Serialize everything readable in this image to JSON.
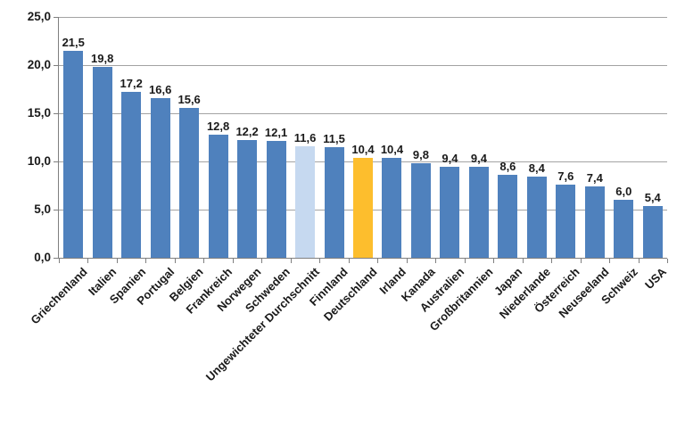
{
  "chart_data": {
    "type": "bar",
    "title": "",
    "xlabel": "",
    "ylabel": "",
    "categories": [
      "Griechenland",
      "Italien",
      "Spanien",
      "Portugal",
      "Belgien",
      "Frankreich",
      "Norwegen",
      "Schweden",
      "Ungewichteter Durchschnitt",
      "Finnland",
      "Deutschland",
      "Irland",
      "Kanada",
      "Australien",
      "Großbritannien",
      "Japan",
      "Niederlande",
      "Österreich",
      "Neuseeland",
      "Schweiz",
      "USA"
    ],
    "values": [
      21.5,
      19.8,
      17.2,
      16.6,
      15.6,
      12.8,
      12.2,
      12.1,
      11.6,
      11.5,
      10.4,
      10.4,
      9.8,
      9.4,
      9.4,
      8.6,
      8.4,
      7.6,
      7.4,
      6.0,
      5.4
    ],
    "value_labels": [
      "21,5",
      "19,8",
      "17,2",
      "16,6",
      "15,6",
      "12,8",
      "12,2",
      "12,1",
      "11,6",
      "11,5",
      "10,4",
      "10,4",
      "9,8",
      "9,4",
      "9,4",
      "8,6",
      "8,4",
      "7,6",
      "7,4",
      "6,0",
      "5,4"
    ],
    "bar_roles": [
      "default",
      "default",
      "default",
      "default",
      "default",
      "default",
      "default",
      "default",
      "average",
      "default",
      "germany",
      "default",
      "default",
      "default",
      "default",
      "default",
      "default",
      "default",
      "default",
      "default",
      "default"
    ],
    "colors": {
      "default": "#4F81BD",
      "average": "#C6D9F0",
      "germany": "#FDBE2D"
    },
    "ylim": [
      0,
      25
    ],
    "yticks": [
      25,
      20,
      15,
      10,
      5,
      0
    ],
    "ytick_labels": [
      "25,0",
      "20,0",
      "15,0",
      "10,0",
      "5,0",
      "0,0"
    ],
    "grid": true,
    "gridline_color": "#A3A3A3",
    "axis_color": "#7F7F7F",
    "text_color": "#1A1A1A",
    "legend_position": "none",
    "x_label_rotation_deg": -45,
    "decimal_separator": ","
  }
}
